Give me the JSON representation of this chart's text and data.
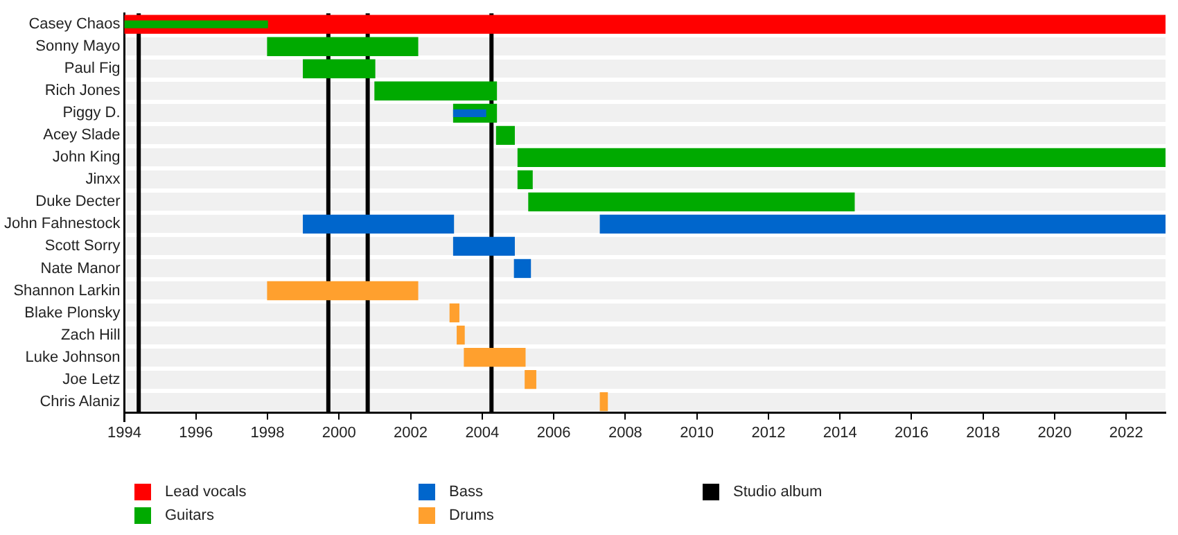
{
  "chart_data": {
    "type": "bar",
    "orientation": "horizontal",
    "categories": [
      "Casey Chaos",
      "Sonny Mayo",
      "Paul Fig",
      "Rich Jones",
      "Piggy D.",
      "Acey Slade",
      "John King",
      "Jinxx",
      "Duke Decter",
      "John Fahnestock",
      "Scott Sorry",
      "Nate Manor",
      "Shannon Larkin",
      "Blake Plonsky",
      "Zach Hill",
      "Luke Johnson",
      "Joe Letz",
      "Chris Alaniz"
    ],
    "series": [
      {
        "name": "Lead vocals",
        "color": "#ff0000",
        "base": [
          1994,
          null,
          null,
          null,
          null,
          null,
          null,
          null,
          null,
          null,
          null,
          null,
          null,
          null,
          null,
          null,
          null,
          null
        ],
        "values": [
          29.1,
          null,
          null,
          null,
          null,
          null,
          null,
          null,
          null,
          null,
          null,
          null,
          null,
          null,
          null,
          null,
          null,
          null
        ]
      },
      {
        "name": "Guitars",
        "color": "#00aa00",
        "base": [
          1994,
          1998,
          1999,
          2001,
          2003.2,
          2004.4,
          2005,
          2005,
          2005.3,
          null,
          null,
          null,
          null,
          null,
          null,
          null,
          null,
          null
        ],
        "values": [
          4,
          4.2,
          2,
          3.4,
          1.2,
          0.5,
          18.1,
          0.4,
          9.1,
          null,
          null,
          null,
          null,
          null,
          null,
          null,
          null,
          null
        ]
      },
      {
        "name": "Bass",
        "color": "#0066cc",
        "base": [
          null,
          null,
          null,
          null,
          2003.2,
          null,
          null,
          null,
          null,
          1999,
          2003.2,
          2004.9,
          null,
          null,
          null,
          null,
          null,
          null
        ],
        "values": [
          null,
          null,
          null,
          null,
          0.9,
          null,
          null,
          null,
          null,
          4.2,
          1.7,
          0.45,
          null,
          null,
          null,
          null,
          null,
          null
        ]
      },
      {
        "color": "#0066cc",
        "base": [
          null,
          null,
          null,
          null,
          null,
          null,
          null,
          null,
          null,
          2007.3,
          null,
          null,
          null,
          null,
          null,
          null,
          null,
          null
        ],
        "values": [
          null,
          null,
          null,
          null,
          null,
          null,
          null,
          null,
          null,
          15.8,
          null,
          null,
          null,
          null,
          null,
          null,
          null,
          null
        ]
      },
      {
        "name": "Drums",
        "color": "#ffa02e",
        "base": [
          null,
          null,
          null,
          null,
          null,
          null,
          null,
          null,
          null,
          null,
          null,
          null,
          1998,
          2003.1,
          2003.3,
          2003.5,
          2005.2,
          2007.3
        ],
        "values": [
          null,
          null,
          null,
          null,
          null,
          null,
          null,
          null,
          null,
          null,
          null,
          null,
          4.2,
          0.25,
          0.2,
          1.7,
          0.3,
          0.2
        ]
      }
    ],
    "ref_lines": [
      {
        "axis": "x",
        "value": 1994.4,
        "label": "Studio album",
        "color": "#000000"
      },
      {
        "axis": "x",
        "value": 1999.7,
        "color": "#000000"
      },
      {
        "axis": "x",
        "value": 2000.8,
        "color": "#000000"
      },
      {
        "axis": "x",
        "value": 2004.26,
        "color": "#000000"
      }
    ],
    "xlim": [
      1994,
      2023.1
    ],
    "xticks": [
      1994,
      1996,
      1998,
      2000,
      2002,
      2004,
      2006,
      2008,
      2010,
      2012,
      2014,
      2016,
      2018,
      2020,
      2022
    ],
    "grid": "y",
    "legend": "bottom"
  }
}
